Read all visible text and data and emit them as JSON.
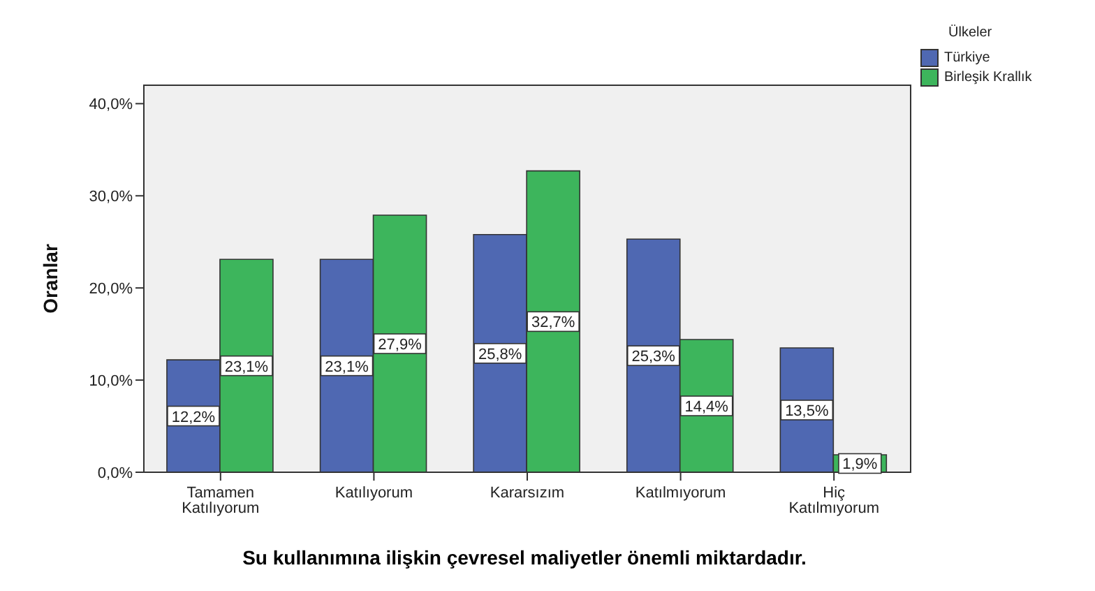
{
  "chart_data": {
    "type": "bar",
    "xlabel": "Su kullanımına ilişkin çevresel maliyetler önemli miktardadır.",
    "ylabel": "Oranlar",
    "legend_title": "Ülkeler",
    "legend": "top right",
    "categories": [
      "Tamamen\nKatılıyorum",
      "Katılıyorum",
      "Kararsızım",
      "Katılmıyorum",
      "Hiç\nKatılmıyorum"
    ],
    "ylim": [
      0,
      42
    ],
    "yticks": [
      {
        "value": 0,
        "label": "0,0%"
      },
      {
        "value": 10,
        "label": "10,0%"
      },
      {
        "value": 20,
        "label": "20,0%"
      },
      {
        "value": 30,
        "label": "30,0%"
      },
      {
        "value": 40,
        "label": "40,0%"
      }
    ],
    "series": [
      {
        "name": "Türkiye",
        "color": "#4f68b2",
        "values": [
          12.2,
          23.1,
          25.8,
          25.3,
          13.5
        ],
        "value_labels": [
          "12,2%",
          "23,1%",
          "25,8%",
          "25,3%",
          "13,5%"
        ]
      },
      {
        "name": "Birleşik Krallık",
        "color": "#3db55c",
        "values": [
          23.1,
          27.9,
          32.7,
          14.4,
          1.9
        ],
        "value_labels": [
          "23,1%",
          "27,9%",
          "32,7%",
          "14,4%",
          "1,9%"
        ]
      }
    ]
  }
}
